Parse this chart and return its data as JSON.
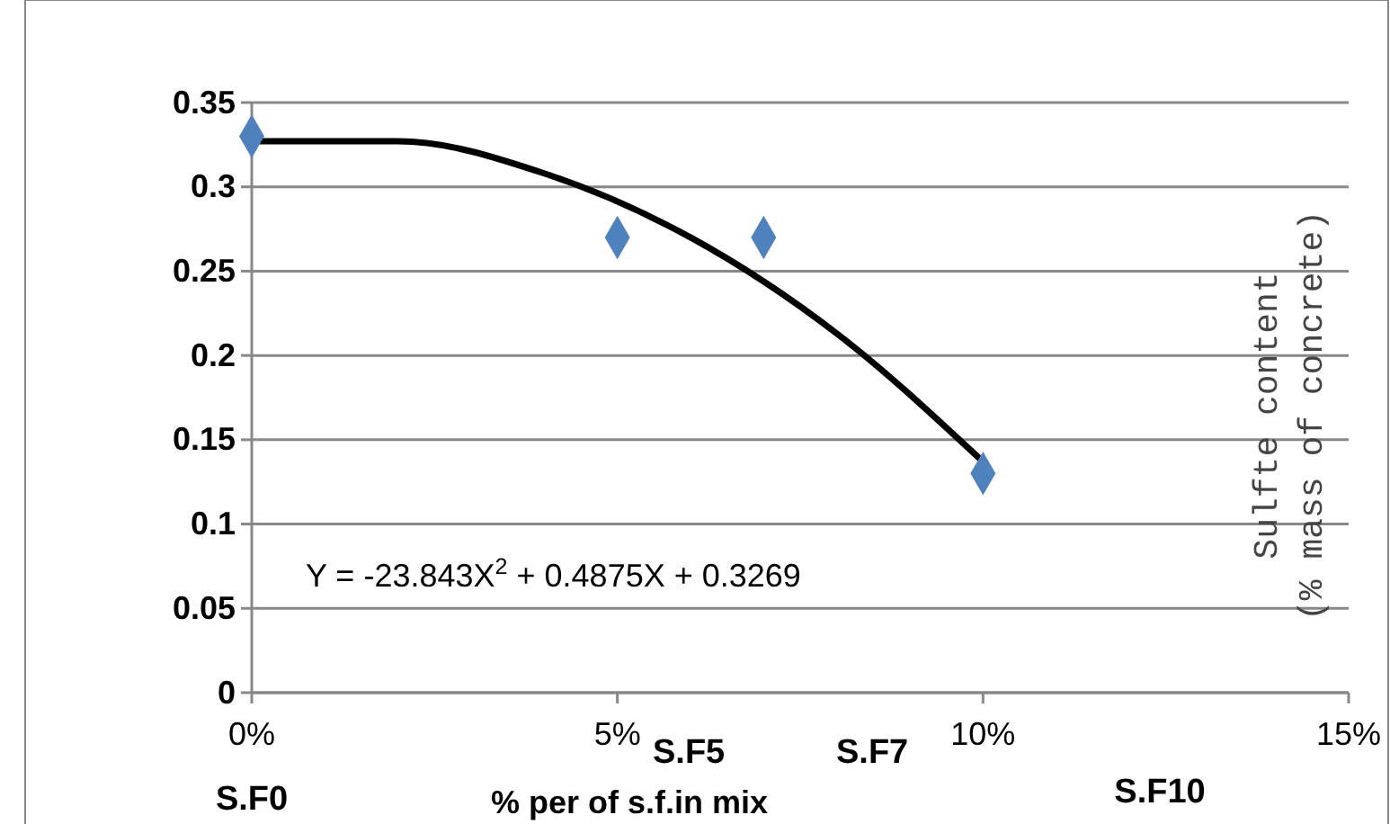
{
  "chart_data": {
    "type": "scatter",
    "xlabel": "% per of s.f.in mix",
    "ylabel": "Sulfte content (% mass of concrete)",
    "xlim": [
      0,
      0.15
    ],
    "xticks": [
      {
        "value": 0,
        "label": "0%"
      },
      {
        "value": 0.05,
        "label": "5%"
      },
      {
        "value": 0.1,
        "label": "10%"
      },
      {
        "value": 0.15,
        "label": "15%"
      }
    ],
    "ylim": [
      0,
      0.35
    ],
    "yticks": [
      0,
      0.05,
      0.1,
      0.15,
      0.2,
      0.25,
      0.3,
      0.35
    ],
    "grid": "y",
    "marker": "diamond",
    "series": [
      {
        "color": "#4f81bd",
        "x": [
          0,
          0.05,
          0.07,
          0.1
        ],
        "values": [
          0.33,
          0.27,
          0.27,
          0.13
        ]
      },
      {
        "type": "line",
        "color": "#000000",
        "line_style": "solid",
        "marker": "none",
        "x": [
          0,
          0.02,
          0.04,
          0.06,
          0.08,
          0.1
        ],
        "values": [
          0.327,
          0.327,
          0.308,
          0.27,
          0.213,
          0.137
        ]
      }
    ],
    "annotations": [
      "Y = -23.843X$^{2}$ + 0.4875X + 0.3269",
      "S.F0",
      "S.F5",
      "S.F7",
      "S.F10"
    ]
  }
}
